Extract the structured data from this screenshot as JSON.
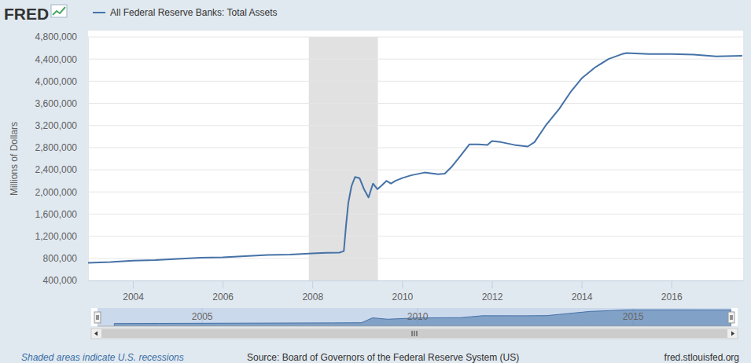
{
  "page": {
    "logo": "FRED",
    "url": "fred.stlouisfed.org"
  },
  "chart_data": [
    {
      "type": "line",
      "y_label": "Millions of Dollars",
      "legend": "top",
      "grid": true,
      "x": [
        2003.0,
        2003.5,
        2004.0,
        2004.5,
        2005.0,
        2005.5,
        2006.0,
        2006.5,
        2007.0,
        2007.5,
        2008.0,
        2008.3,
        2008.6,
        2008.7,
        2008.75,
        2008.8,
        2008.87,
        2008.95,
        2009.05,
        2009.15,
        2009.25,
        2009.35,
        2009.45,
        2009.55,
        2009.65,
        2009.75,
        2009.85,
        2010.0,
        2010.2,
        2010.5,
        2010.8,
        2010.95,
        2011.1,
        2011.3,
        2011.5,
        2011.7,
        2011.9,
        2012.0,
        2012.2,
        2012.5,
        2012.8,
        2012.95,
        2013.2,
        2013.5,
        2013.75,
        2014.0,
        2014.3,
        2014.6,
        2014.9,
        2015.0,
        2015.5,
        2016.0,
        2016.5,
        2017.0,
        2017.58
      ],
      "series": [
        {
          "name": "All Federal Reserve Banks: Total Assets",
          "color": "#4572a7",
          "values": [
            720000,
            735000,
            760000,
            770000,
            790000,
            810000,
            820000,
            840000,
            860000,
            870000,
            890000,
            900000,
            905000,
            930000,
            1400000,
            1800000,
            2100000,
            2270000,
            2250000,
            2050000,
            1900000,
            2150000,
            2050000,
            2120000,
            2200000,
            2150000,
            2200000,
            2250000,
            2300000,
            2350000,
            2320000,
            2330000,
            2450000,
            2650000,
            2860000,
            2860000,
            2850000,
            2920000,
            2900000,
            2850000,
            2820000,
            2900000,
            3200000,
            3500000,
            3800000,
            4050000,
            4250000,
            4400000,
            4490000,
            4510000,
            4490000,
            4490000,
            4480000,
            4450000,
            4460000
          ]
        }
      ],
      "xlim": [
        2003.0,
        2017.6
      ],
      "xticks": [
        2004,
        2006,
        2008,
        2010,
        2012,
        2014,
        2016
      ],
      "ylim": [
        400000,
        4800000
      ],
      "yticks": [
        {
          "value": 400000,
          "label": "400,000"
        },
        {
          "value": 800000,
          "label": "800,000"
        },
        {
          "value": 1200000,
          "label": "1,200,000"
        },
        {
          "value": 1600000,
          "label": "1,600,000"
        },
        {
          "value": 2000000,
          "label": "2,000,000"
        },
        {
          "value": 2400000,
          "label": "2,400,000"
        },
        {
          "value": 2800000,
          "label": "2,800,000"
        },
        {
          "value": 3200000,
          "label": "3,200,000"
        },
        {
          "value": 3600000,
          "label": "3,600,000"
        },
        {
          "value": 4000000,
          "label": "4,000,000"
        },
        {
          "value": 4400000,
          "label": "4,400,000"
        },
        {
          "value": 4800000,
          "label": "4,800,000"
        }
      ],
      "shaded_ranges": [
        [
          2007.92,
          2009.46
        ]
      ],
      "annotations": [
        "Shaded areas indicate U.S. recessions"
      ],
      "source": "Source: Board of Governors of the Federal Reserve System (US)"
    },
    {
      "type": "area",
      "tick_labels": "x",
      "x": [
        2002.96,
        2004.0,
        2006.0,
        2008.0,
        2008.7,
        2008.95,
        2009.3,
        2010.0,
        2011.0,
        2011.5,
        2012.5,
        2013.0,
        2014.0,
        2014.9,
        2016.0,
        2017.28
      ],
      "series": [
        {
          "name": "All Federal Reserve Banks: Total Assets",
          "color": "#4572a7",
          "values": [
            720000,
            760000,
            820000,
            890000,
            930000,
            2270000,
            1900000,
            2250000,
            2330000,
            2860000,
            2850000,
            2900000,
            4050000,
            4490000,
            4490000,
            4460000
          ]
        }
      ],
      "xlim": [
        2002.57,
        2017.28
      ],
      "xticks": [
        2005,
        2010,
        2015
      ],
      "ylim": [
        0,
        5000000
      ]
    }
  ]
}
